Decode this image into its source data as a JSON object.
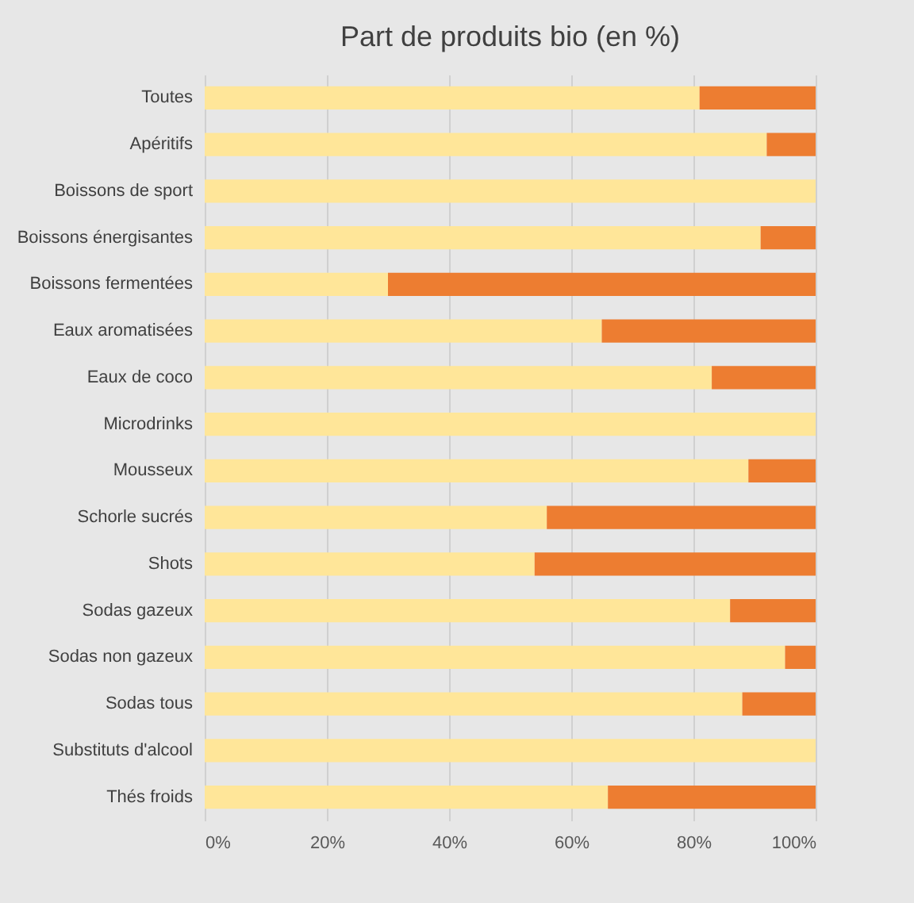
{
  "chart_data": {
    "type": "bar",
    "title": "Part de produits bio (en %)",
    "orientation": "horizontal",
    "stacked": true,
    "categories": [
      "Toutes",
      "Apéritifs",
      "Boissons de sport",
      "Boissons énergisantes",
      "Boissons fermentées",
      "Eaux aromatisées",
      "Eaux de coco",
      "Microdrinks",
      "Mousseux",
      "Schorle sucrés",
      "Shots",
      "Sodas gazeux",
      "Sodas non gazeux",
      "Sodas tous",
      "Substituts d'alcool",
      "Thés froids"
    ],
    "series": [
      {
        "color": "#ffe699",
        "values": [
          81,
          92,
          100,
          91,
          30,
          65,
          83,
          100,
          89,
          56,
          54,
          86,
          95,
          88,
          100,
          66
        ]
      },
      {
        "color": "#ed7d31",
        "values": [
          19,
          8,
          0,
          9,
          70,
          35,
          17,
          0,
          11,
          44,
          46,
          14,
          5,
          12,
          0,
          34
        ]
      }
    ],
    "xlim": [
      0,
      100
    ],
    "xticks": [
      {
        "value": 0,
        "label": "0%"
      },
      {
        "value": 20,
        "label": "20%"
      },
      {
        "value": 40,
        "label": "40%"
      },
      {
        "value": 60,
        "label": "60%"
      },
      {
        "value": 80,
        "label": "80%"
      },
      {
        "value": 100,
        "label": "100%"
      }
    ],
    "grid": "x",
    "legend": false
  }
}
